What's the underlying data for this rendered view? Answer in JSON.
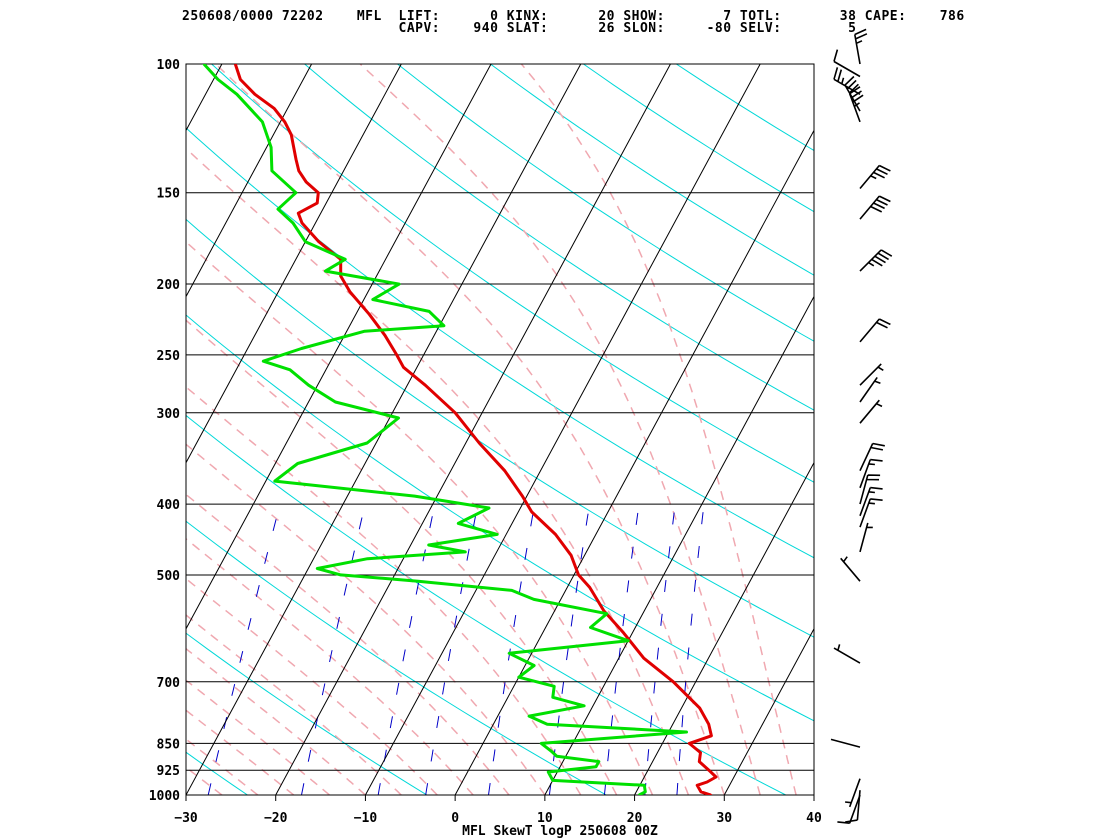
{
  "header": {
    "line1": "250608/0000 72202    MFL  LIFT:      0 KINX:      20 SHOW:       7 TOTL:       38 CAPE:    786",
    "line2": "                          CAPV:    940 SLAT:      26 SLON:     -80 SELV:        5"
  },
  "chart_data": {
    "type": "line",
    "title": "MFL SkewT logP 250608 00Z",
    "xlabel": "",
    "ylabel": "",
    "x_ticks": [
      -30,
      -20,
      -10,
      0,
      10,
      20,
      30,
      40
    ],
    "x_range": [
      -30,
      40
    ],
    "y_ticks": [
      100,
      150,
      200,
      250,
      300,
      400,
      500,
      700,
      850,
      925,
      1000
    ],
    "y_range": [
      100,
      1000
    ],
    "y_scale": "log",
    "skew_degC_per_decade": 44,
    "background": {
      "isotherms_colour": "#000000",
      "dry_adiabats_colour": "#00d8d8",
      "moist_adiabats_colour": "#f0a8b0",
      "mixing_ratio_colour": "#0000c8"
    },
    "series": [
      {
        "role": "temperature",
        "color": "#e00000",
        "points": [
          [
            1000,
            28.5
          ],
          [
            990,
            27.2
          ],
          [
            970,
            26.4
          ],
          [
            960,
            27.3
          ],
          [
            945,
            28.0
          ],
          [
            925,
            26.8
          ],
          [
            900,
            25.2
          ],
          [
            875,
            24.8
          ],
          [
            850,
            23.0
          ],
          [
            830,
            25.0
          ],
          [
            800,
            24.0
          ],
          [
            760,
            22.0
          ],
          [
            700,
            17.5
          ],
          [
            650,
            12.8
          ],
          [
            600,
            9.0
          ],
          [
            560,
            5.5
          ],
          [
            520,
            2.5
          ],
          [
            500,
            0.5
          ],
          [
            470,
            -1.5
          ],
          [
            440,
            -4.5
          ],
          [
            410,
            -8.5
          ],
          [
            390,
            -10.5
          ],
          [
            360,
            -14.0
          ],
          [
            330,
            -18.5
          ],
          [
            300,
            -23.0
          ],
          [
            275,
            -28.0
          ],
          [
            260,
            -31.5
          ],
          [
            250,
            -33.0
          ],
          [
            235,
            -35.5
          ],
          [
            220,
            -38.5
          ],
          [
            205,
            -42.0
          ],
          [
            195,
            -44.0
          ],
          [
            185,
            -45.0
          ],
          [
            175,
            -48.5
          ],
          [
            165,
            -51.5
          ],
          [
            160,
            -52.5
          ],
          [
            155,
            -51.0
          ],
          [
            150,
            -51.5
          ],
          [
            145,
            -53.5
          ],
          [
            140,
            -55.0
          ],
          [
            135,
            -56.0
          ],
          [
            125,
            -58.0
          ],
          [
            120,
            -59.5
          ],
          [
            115,
            -61.5
          ],
          [
            110,
            -64.5
          ],
          [
            105,
            -67.0
          ],
          [
            100,
            -68.5
          ]
        ]
      },
      {
        "role": "dewpoint",
        "color": "#00e000",
        "points": [
          [
            1000,
            20.5
          ],
          [
            990,
            21.0
          ],
          [
            970,
            20.5
          ],
          [
            955,
            10.0
          ],
          [
            930,
            9.0
          ],
          [
            915,
            14.0
          ],
          [
            900,
            14.0
          ],
          [
            885,
            9.0
          ],
          [
            870,
            8.0
          ],
          [
            850,
            6.5
          ],
          [
            820,
            22.0
          ],
          [
            800,
            6.0
          ],
          [
            780,
            3.5
          ],
          [
            755,
            9.0
          ],
          [
            735,
            5.0
          ],
          [
            710,
            4.5
          ],
          [
            690,
            0.0
          ],
          [
            665,
            1.0
          ],
          [
            640,
            -2.5
          ],
          [
            615,
            10.0
          ],
          [
            590,
            5.0
          ],
          [
            565,
            6.0
          ],
          [
            540,
            -3.0
          ],
          [
            525,
            -6.0
          ],
          [
            510,
            -17.0
          ],
          [
            500,
            -26.0
          ],
          [
            490,
            -29.0
          ],
          [
            475,
            -24.0
          ],
          [
            465,
            -13.5
          ],
          [
            455,
            -18.0
          ],
          [
            440,
            -11.0
          ],
          [
            425,
            -16.0
          ],
          [
            405,
            -13.5
          ],
          [
            390,
            -22.5
          ],
          [
            372,
            -39.0
          ],
          [
            352,
            -37.5
          ],
          [
            330,
            -31.0
          ],
          [
            305,
            -29.0
          ],
          [
            290,
            -37.0
          ],
          [
            275,
            -41.0
          ],
          [
            262,
            -44.0
          ],
          [
            255,
            -47.5
          ],
          [
            245,
            -44.0
          ],
          [
            232,
            -38.0
          ],
          [
            228,
            -29.5
          ],
          [
            218,
            -32.0
          ],
          [
            210,
            -39.0
          ],
          [
            200,
            -37.0
          ],
          [
            192,
            -46.0
          ],
          [
            185,
            -44.5
          ],
          [
            175,
            -50.0
          ],
          [
            165,
            -52.5
          ],
          [
            158,
            -55.0
          ],
          [
            150,
            -54.0
          ],
          [
            140,
            -58.0
          ],
          [
            130,
            -59.5
          ],
          [
            120,
            -62.0
          ],
          [
            110,
            -66.5
          ],
          [
            105,
            -69.5
          ],
          [
            100,
            -72.0
          ]
        ]
      }
    ],
    "wind_barbs": [
      {
        "p": 100,
        "dir": 350,
        "spd": 25
      },
      {
        "p": 104,
        "dir": 300,
        "spd": 10
      },
      {
        "p": 110,
        "dir": 300,
        "spd": 25
      },
      {
        "p": 116,
        "dir": 330,
        "spd": 30
      },
      {
        "p": 120,
        "dir": 340,
        "spd": 35
      },
      {
        "p": 148,
        "dir": 40,
        "spd": 35
      },
      {
        "p": 163,
        "dir": 40,
        "spd": 40
      },
      {
        "p": 192,
        "dir": 45,
        "spd": 45
      },
      {
        "p": 240,
        "dir": 40,
        "spd": 20
      },
      {
        "p": 275,
        "dir": 45,
        "spd": 5
      },
      {
        "p": 290,
        "dir": 35,
        "spd": 5
      },
      {
        "p": 310,
        "dir": 40,
        "spd": 5
      },
      {
        "p": 360,
        "dir": 25,
        "spd": 20
      },
      {
        "p": 380,
        "dir": 20,
        "spd": 15
      },
      {
        "p": 400,
        "dir": 15,
        "spd": 20
      },
      {
        "p": 415,
        "dir": 20,
        "spd": 15
      },
      {
        "p": 430,
        "dir": 20,
        "spd": 15
      },
      {
        "p": 465,
        "dir": 15,
        "spd": 5
      },
      {
        "p": 510,
        "dir": 320,
        "spd": 5
      },
      {
        "p": 660,
        "dir": 300,
        "spd": 5
      },
      {
        "p": 860,
        "dir": 285,
        "spd": 0
      },
      {
        "p": 950,
        "dir": 200,
        "spd": 5
      },
      {
        "p": 985,
        "dir": 185,
        "spd": 10
      },
      {
        "p": 1000,
        "dir": 200,
        "spd": 10
      }
    ]
  }
}
